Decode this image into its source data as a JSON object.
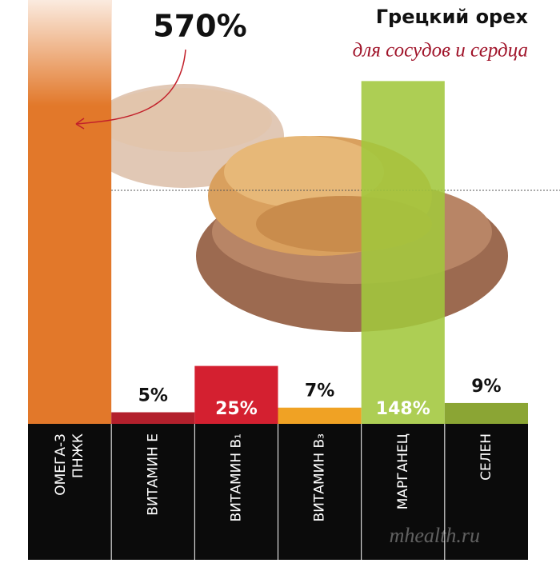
{
  "chart_data": {
    "type": "bar",
    "title": "Грецкий орех",
    "subtitle": "для сосудов и сердца",
    "categories": [
      "ОМЕГА-3 ПНЖК",
      "ВИТАМИН E",
      "ВИТАМИН В₁",
      "ВИТАМИН В₃",
      "МАРГАНЕЦ",
      "СЕЛЕН"
    ],
    "values": [
      570,
      5,
      25,
      7,
      148,
      9
    ],
    "value_labels": [
      "570%",
      "5%",
      "25%",
      "7%",
      "148%",
      "9%"
    ],
    "colors": [
      "#e2782a",
      "#b3202c",
      "#d42030",
      "#f0a224",
      "#a2c73c",
      "#8ba534"
    ],
    "ylim": [
      0,
      183
    ],
    "watermark": "mhealth.ru"
  }
}
